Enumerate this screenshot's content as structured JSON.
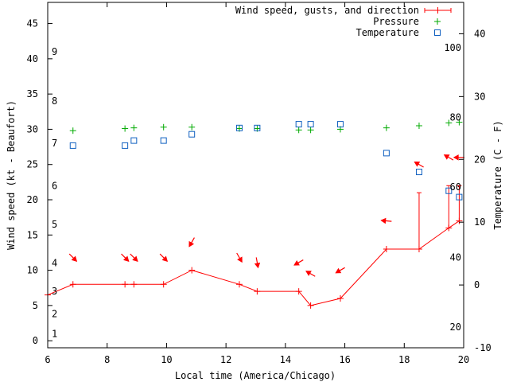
{
  "chart_data": {
    "type": "line",
    "title": "",
    "xlabel": "Local time (America/Chicago)",
    "ylabel": "Wind speed (kt - Beaufort)",
    "y2label": "Temperature (C - F)",
    "xlim": [
      6,
      20
    ],
    "ylim": [
      -1,
      48
    ],
    "y2lim": [
      -10,
      45
    ],
    "grid": false,
    "legend_position": "top-right",
    "x_ticks": [
      6,
      8,
      10,
      12,
      14,
      16,
      18,
      20
    ],
    "y_ticks": [
      0,
      5,
      10,
      15,
      20,
      25,
      30,
      35,
      40,
      45
    ],
    "y2_ticks": [
      -10,
      0,
      10,
      20,
      30,
      40
    ],
    "beaufort_scale": [
      {
        "label": "1",
        "kt": 1.0
      },
      {
        "label": "2",
        "kt": 3.8
      },
      {
        "label": "3",
        "kt": 7.0
      },
      {
        "label": "4",
        "kt": 11.0
      },
      {
        "label": "5",
        "kt": 16.5
      },
      {
        "label": "6",
        "kt": 22.0
      },
      {
        "label": "7",
        "kt": 28.0
      },
      {
        "label": "8",
        "kt": 34.0
      },
      {
        "label": "9",
        "kt": 41.0
      }
    ],
    "fahrenheit_scale": [
      {
        "label": "20",
        "celsius": -6.7
      },
      {
        "label": "40",
        "celsius": 4.4
      },
      {
        "label": "60",
        "celsius": 15.6
      },
      {
        "label": "80",
        "celsius": 26.7
      },
      {
        "label": "100",
        "celsius": 37.8
      }
    ],
    "series": [
      {
        "name": "Wind speed, gusts, and direction",
        "color": "#ff0000",
        "x": [
          6.0,
          6.85,
          8.6,
          8.9,
          9.9,
          10.85,
          12.45,
          13.05,
          14.45,
          14.85,
          15.85,
          17.4,
          18.5,
          19.5,
          19.85
        ],
        "values": [
          6.5,
          8,
          8,
          8,
          8,
          10,
          8,
          7,
          7,
          5,
          6,
          13,
          13,
          16,
          17
        ],
        "gusts": [
          {
            "x": 18.5,
            "value": 21
          },
          {
            "x": 19.5,
            "value": 22
          },
          {
            "x": 19.85,
            "value": 22
          }
        ],
        "direction_arrows": [
          {
            "x": 6.85,
            "y": 11.8,
            "direction_deg": 135
          },
          {
            "x": 8.6,
            "y": 11.8,
            "direction_deg": 135
          },
          {
            "x": 8.9,
            "y": 11.8,
            "direction_deg": 135
          },
          {
            "x": 9.9,
            "y": 11.8,
            "direction_deg": 135
          },
          {
            "x": 10.85,
            "y": 14.0,
            "direction_deg": 210
          },
          {
            "x": 12.45,
            "y": 11.8,
            "direction_deg": 150
          },
          {
            "x": 13.05,
            "y": 11.1,
            "direction_deg": 170
          },
          {
            "x": 14.45,
            "y": 11.1,
            "direction_deg": 240
          },
          {
            "x": 14.85,
            "y": 9.5,
            "direction_deg": 300
          },
          {
            "x": 15.85,
            "y": 10.0,
            "direction_deg": 240
          },
          {
            "x": 17.4,
            "y": 17.0,
            "direction_deg": 275
          },
          {
            "x": 18.5,
            "y": 25.0,
            "direction_deg": 300
          },
          {
            "x": 19.5,
            "y": 26.0,
            "direction_deg": 300
          },
          {
            "x": 19.85,
            "y": 26.0,
            "direction_deg": 270
          }
        ]
      },
      {
        "name": "Pressure",
        "color": "#00aa00",
        "x": [
          6.85,
          8.6,
          8.9,
          9.9,
          10.85,
          12.45,
          13.05,
          14.45,
          14.85,
          15.85,
          17.4,
          18.5,
          19.5,
          19.85
        ],
        "values": [
          29.8,
          30.1,
          30.2,
          30.3,
          30.3,
          30.1,
          30.1,
          29.9,
          29.9,
          30.0,
          30.2,
          30.5,
          30.9,
          31.0
        ]
      },
      {
        "name": "Temperature",
        "color": "#1060c0",
        "x": [
          6.85,
          8.6,
          8.9,
          9.9,
          10.85,
          12.45,
          13.05,
          14.45,
          14.85,
          15.85,
          17.4,
          18.5,
          19.5,
          19.85
        ],
        "values_celsius": [
          22.2,
          22.2,
          23.0,
          23.0,
          24.0,
          25.0,
          25.0,
          25.6,
          25.6,
          25.6,
          21.0,
          18.0,
          15.0,
          14.0
        ]
      }
    ]
  }
}
